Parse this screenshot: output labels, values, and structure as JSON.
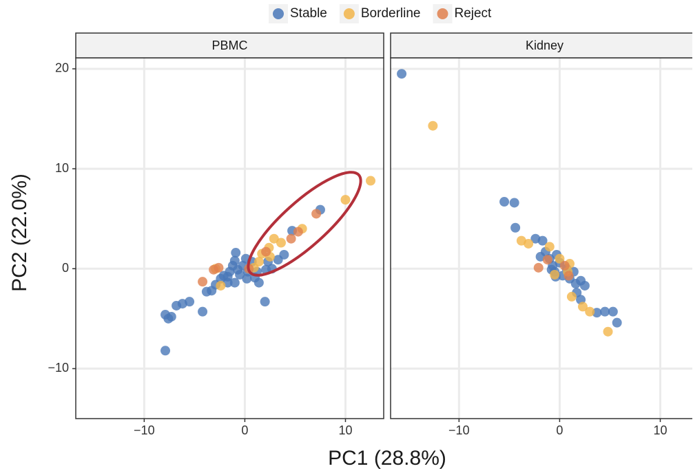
{
  "chart_data": {
    "type": "scatter",
    "x_label": "PC1 (28.8%)",
    "y_label": "PC2 (22.0%)",
    "xlim": [
      -16.8,
      13.8
    ],
    "ylim": [
      -15,
      21.1
    ],
    "xticks": [
      {
        "value": -10,
        "label": "−10"
      },
      0,
      10
    ],
    "yticks": [
      {
        "value": -10,
        "label": "−10"
      },
      0,
      10,
      20
    ],
    "grid": true,
    "legend_position": "top",
    "series": [
      {
        "name": "Stable",
        "color": "#4a78b8"
      },
      {
        "name": "Borderline",
        "color": "#f2b54a"
      },
      {
        "name": "Reject",
        "color": "#e0804e"
      }
    ],
    "facets": [
      {
        "title": "PBMC",
        "points": [
          {
            "x": [
              -7.9,
              -7.9,
              -7.6,
              -7.3,
              -6.8,
              -6.2,
              -5.5,
              -4.2,
              -3.8,
              -3.3,
              -2.9,
              -2.4,
              -2.1,
              -1.7,
              -1.5,
              -1.2,
              -1.0,
              -0.9,
              -0.7,
              -0.5,
              -0.2,
              0.1,
              0.3,
              0.7,
              1.0,
              1.4,
              2.0,
              2.3,
              2.7,
              3.3,
              3.9,
              4.7,
              7.5,
              2.1,
              -1.0,
              -1.7,
              0.2,
              1.2
            ],
            "y": [
              -8.2,
              -4.6,
              -5.0,
              -4.8,
              -3.7,
              -3.5,
              -3.3,
              -4.3,
              -2.3,
              -2.2,
              -1.6,
              -1.0,
              -0.7,
              -1.4,
              -0.3,
              0.3,
              0.8,
              1.6,
              -0.1,
              -0.6,
              0.3,
              1.0,
              -0.3,
              0.7,
              -0.9,
              -1.4,
              -3.3,
              0.7,
              0.0,
              0.9,
              1.4,
              3.8,
              5.9,
              -0.1,
              -1.4,
              -0.8,
              -1.0,
              -0.3
            ]
          },
          {
            "x": [
              12.5,
              10.0,
              5.7,
              3.6,
              2.9,
              2.4,
              1.7,
              1.4,
              0.9,
              -2.4,
              -2.9,
              2.5
            ],
            "y": [
              8.8,
              6.9,
              4.0,
              2.6,
              3.0,
              2.1,
              1.5,
              0.7,
              0.1,
              -1.7,
              0.0,
              1.2
            ]
          },
          {
            "x": [
              -4.2,
              -3.1,
              -2.6,
              7.1,
              5.3,
              4.6,
              2.1,
              0.4
            ],
            "y": [
              -1.3,
              -0.1,
              0.1,
              5.5,
              3.7,
              3.0,
              1.7,
              0.0
            ]
          }
        ]
      },
      {
        "title": "Kidney",
        "points": [
          {
            "x": [
              -15.7,
              -5.5,
              -4.5,
              -4.4,
              -2.4,
              -1.7,
              -1.9,
              -1.4,
              -1.0,
              -0.7,
              -0.3,
              0.0,
              -0.5,
              0.3,
              0.7,
              1.0,
              1.6,
              2.1,
              2.5,
              2.1,
              -0.4,
              -0.8,
              3.7,
              4.5,
              5.3,
              5.7,
              1.4,
              1.7
            ],
            "y": [
              19.5,
              6.7,
              6.6,
              4.1,
              3.0,
              2.8,
              1.2,
              1.7,
              1.0,
              0.3,
              1.4,
              0.6,
              -0.3,
              -0.7,
              0.0,
              -1.0,
              -1.5,
              -1.2,
              -1.7,
              -3.1,
              -0.8,
              -0.1,
              -4.4,
              -4.3,
              -4.3,
              -5.4,
              -0.3,
              -2.4
            ]
          },
          {
            "x": [
              -12.6,
              -3.8,
              -3.1,
              -1.0,
              0.0,
              1.0,
              -0.5,
              1.2,
              2.3,
              3.0,
              4.8,
              0.8
            ],
            "y": [
              14.3,
              2.8,
              2.5,
              2.2,
              1.0,
              0.5,
              -0.6,
              -2.8,
              -3.8,
              -4.3,
              -6.3,
              -0.3
            ]
          },
          {
            "x": [
              -2.1,
              -1.2,
              0.5,
              0.9
            ],
            "y": [
              0.1,
              0.9,
              0.3,
              -0.7
            ]
          }
        ]
      }
    ]
  }
}
